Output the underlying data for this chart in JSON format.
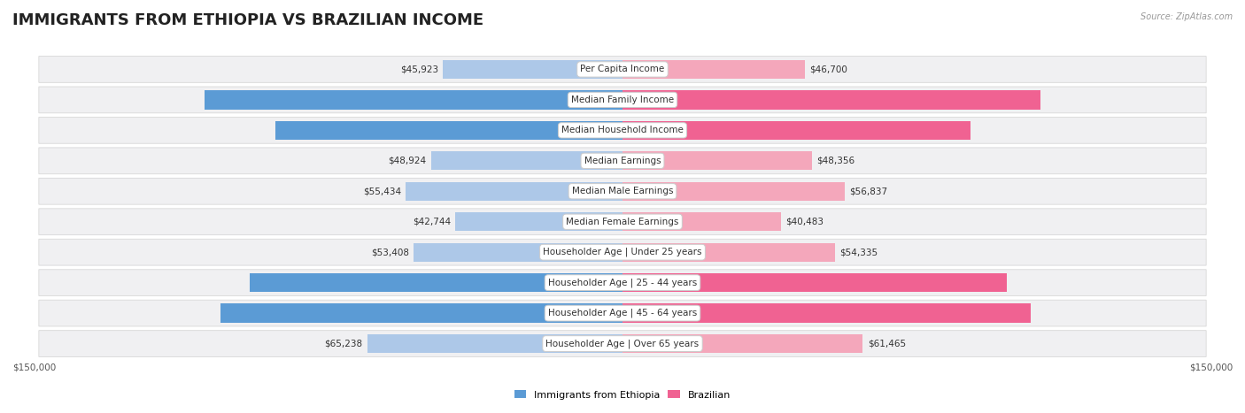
{
  "title": "IMMIGRANTS FROM ETHIOPIA VS BRAZILIAN INCOME",
  "source": "Source: ZipAtlas.com",
  "categories": [
    "Per Capita Income",
    "Median Family Income",
    "Median Household Income",
    "Median Earnings",
    "Median Male Earnings",
    "Median Female Earnings",
    "Householder Age | Under 25 years",
    "Householder Age | 25 - 44 years",
    "Householder Age | 45 - 64 years",
    "Householder Age | Over 65 years"
  ],
  "ethiopia_values": [
    45923,
    106969,
    88687,
    48924,
    55434,
    42744,
    53408,
    95256,
    102763,
    65238
  ],
  "brazilian_values": [
    46700,
    106942,
    88934,
    48356,
    56837,
    40483,
    54335,
    98267,
    104408,
    61465
  ],
  "ethiopia_color_light": "#adc8e8",
  "ethiopia_color_dark": "#5b9bd5",
  "brazilian_color_light": "#f4a7bb",
  "brazilian_color_dark": "#f06292",
  "max_value": 150000,
  "bar_height": 0.62,
  "row_bg_light": "#f0f0f0",
  "row_bg_dark": "#e4e4e4",
  "background_color": "#ffffff",
  "title_fontsize": 13,
  "label_fontsize": 7.5,
  "value_fontsize": 7.5,
  "cat_fontsize": 7.5,
  "legend_ethiopia": "Immigrants from Ethiopia",
  "legend_brazilian": "Brazilian",
  "xlabel_left": "$150,000",
  "xlabel_right": "$150,000",
  "dark_threshold": 70000
}
